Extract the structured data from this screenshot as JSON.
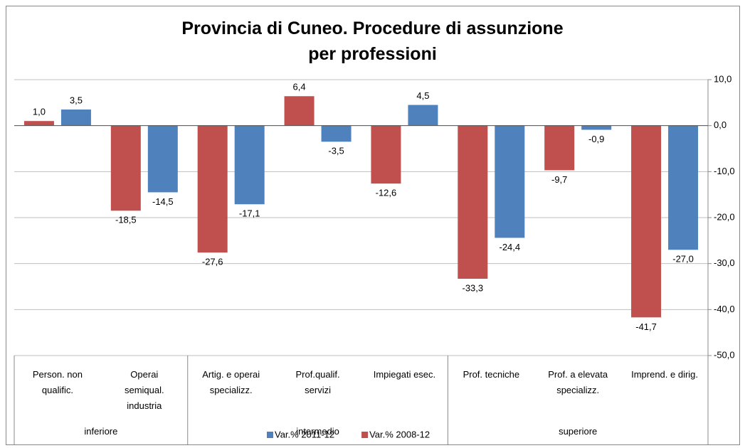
{
  "chart_data": {
    "type": "bar",
    "title": "Provincia di Cuneo. Procedure di assunzione\nper professioni",
    "categories": [
      "Person. non\nqualific.",
      "Operai\nsemiqual.\nindustria",
      "Artig. e operai\nspecializz.",
      "Prof.qualif.\nservizi",
      "Impiegati esec.",
      "Prof. tecniche",
      "Prof. a elevata\nspecializz.",
      "Imprend. e dirig."
    ],
    "groups": [
      "inferiore",
      "intermedio",
      "superiore"
    ],
    "series": [
      {
        "name": "Var.% 2008-12",
        "color": "#c0504d",
        "values": [
          1.0,
          -18.5,
          -27.6,
          6.4,
          -12.6,
          -33.3,
          -9.7,
          -41.7
        ],
        "value_labels": [
          "1,0",
          "-18,5",
          "-27,6",
          "6,4",
          "-12,6",
          "-33,3",
          "-9,7",
          "-41,7"
        ]
      },
      {
        "name": "Var.% 2011-12",
        "color": "#4f81bd",
        "values": [
          3.5,
          -14.5,
          -17.1,
          -3.5,
          4.5,
          -24.4,
          -0.9,
          -27.0
        ],
        "value_labels": [
          "3,5",
          "-14,5",
          "-17,1",
          "-3,5",
          "4,5",
          "-24,4",
          "-0,9",
          "-27,0"
        ]
      }
    ],
    "legend_order": [
      1,
      0
    ],
    "ylim": [
      -50,
      10
    ],
    "yticks": [
      {
        "value": 10,
        "label": "10,0"
      },
      {
        "value": 0,
        "label": "0,0"
      },
      {
        "value": -10,
        "label": "-10,0"
      },
      {
        "value": -20,
        "label": "-20,0"
      },
      {
        "value": -30,
        "label": "-30,0"
      },
      {
        "value": -40,
        "label": "-40,0"
      },
      {
        "value": -50,
        "label": "-50,0"
      }
    ],
    "grid": true,
    "legend": "bottom"
  }
}
